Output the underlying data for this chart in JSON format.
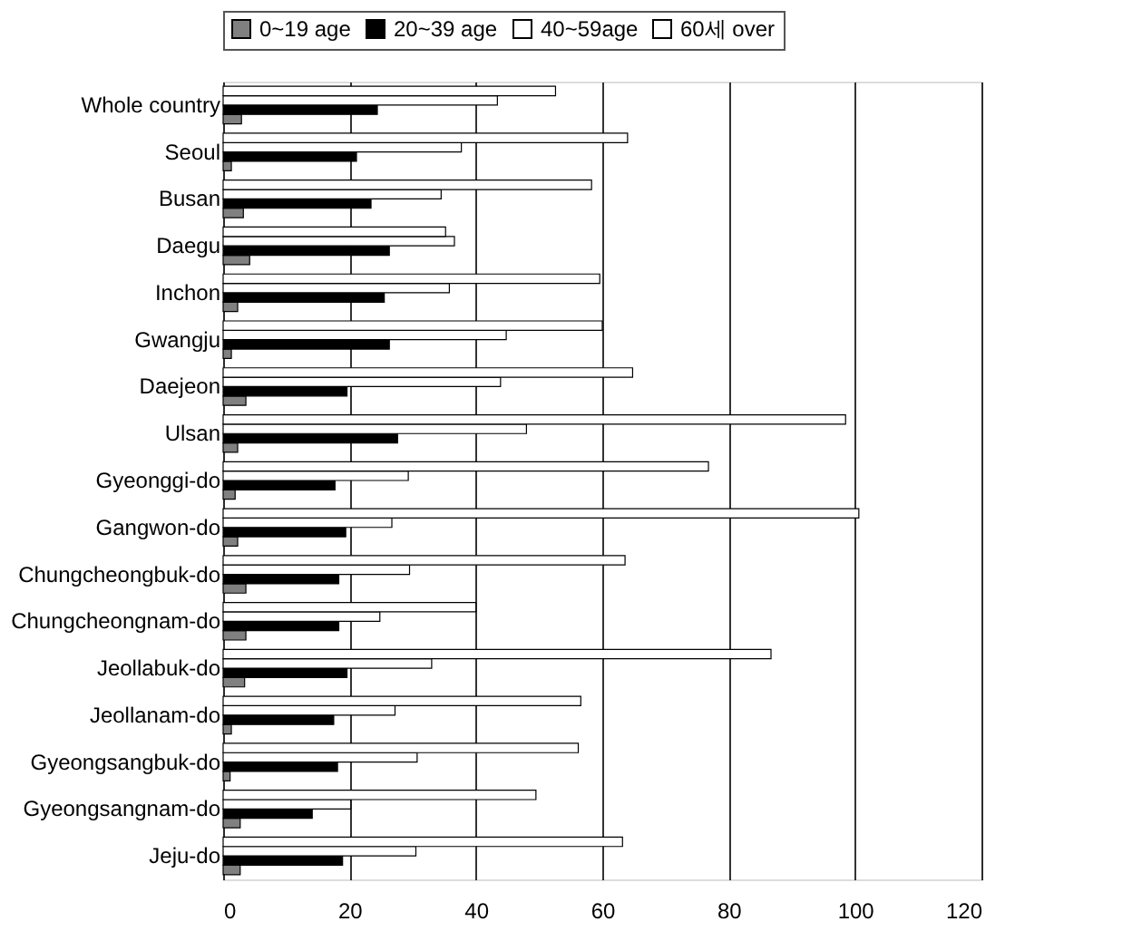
{
  "chart_data": {
    "type": "bar",
    "orientation": "horizontal",
    "categories": [
      "Whole country",
      "Seoul",
      "Busan",
      "Daegu",
      "Inchon",
      "Gwangju",
      "Daejeon",
      "Ulsan",
      "Gyeonggi-do",
      "Gangwon-do",
      "Chungcheongbuk-do",
      "Chungcheongnam-do",
      "Jeollabuk-do",
      "Jeollanam-do",
      "Gyeongsangbuk-do",
      "Gyeongsangnam-do",
      "Jeju-do"
    ],
    "series": [
      {
        "name": "0~19 age",
        "color": "#808080",
        "values": [
          2.9,
          1.3,
          3.2,
          4.2,
          2.3,
          1.3,
          3.6,
          2.3,
          1.9,
          2.3,
          3.6,
          3.6,
          3.4,
          1.3,
          1.1,
          2.7,
          2.7
        ]
      },
      {
        "name": "20~39 age",
        "color": "#000000",
        "values": [
          24.4,
          21.1,
          23.4,
          26.3,
          25.5,
          26.3,
          19.6,
          27.6,
          17.7,
          19.4,
          18.3,
          18.3,
          19.6,
          17.5,
          18.1,
          14.1,
          18.9
        ]
      },
      {
        "name": "40~59age",
        "color": "#ffffff",
        "values": [
          43.4,
          37.7,
          34.5,
          36.6,
          35.8,
          44.8,
          43.9,
          48.0,
          29.3,
          26.7,
          29.5,
          24.8,
          33.0,
          27.2,
          30.7,
          20.2,
          30.5
        ]
      },
      {
        "name": "60세 over",
        "color": "#ffffff",
        "values": [
          52.6,
          64.0,
          58.3,
          35.2,
          59.6,
          60.0,
          64.8,
          98.5,
          76.8,
          100.6,
          63.6,
          40.0,
          86.7,
          56.6,
          56.2,
          49.5,
          63.2
        ]
      }
    ],
    "xlim": [
      0,
      120
    ],
    "xticks": [
      0,
      20,
      40,
      60,
      80,
      100,
      120
    ],
    "grid": "x",
    "legend": "top"
  }
}
